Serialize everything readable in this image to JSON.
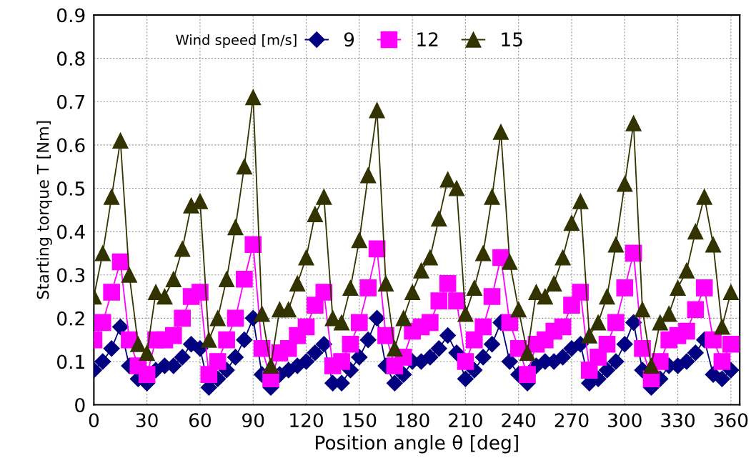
{
  "chart_data": {
    "type": "line",
    "xlabel": "Position angle θ [deg]",
    "ylabel": "Starting torque T [Nm]",
    "legend_title": "Wind speed [m/s]",
    "legend": "top left",
    "grid": true,
    "x": [
      0,
      5,
      10,
      15,
      20,
      25,
      30,
      35,
      40,
      45,
      50,
      55,
      60,
      65,
      70,
      75,
      80,
      85,
      90,
      95,
      100,
      105,
      110,
      115,
      120,
      125,
      130,
      135,
      140,
      145,
      150,
      155,
      160,
      165,
      170,
      175,
      180,
      185,
      190,
      195,
      200,
      205,
      210,
      215,
      220,
      225,
      230,
      235,
      240,
      245,
      250,
      255,
      260,
      265,
      270,
      275,
      280,
      285,
      290,
      295,
      300,
      305,
      310,
      315,
      320,
      325,
      330,
      335,
      340,
      345,
      350,
      355,
      360
    ],
    "xlim": [
      0,
      365
    ],
    "xticks": [
      0,
      30,
      60,
      90,
      120,
      150,
      180,
      210,
      240,
      270,
      300,
      330,
      360
    ],
    "ylim": [
      0,
      0.9
    ],
    "yticks": [
      0,
      0.1,
      0.2,
      0.3,
      0.4,
      0.5,
      0.6,
      0.7,
      0.8,
      0.9
    ],
    "series": [
      {
        "name": "9",
        "color": "#000080",
        "marker": "diamond",
        "values": [
          0.08,
          0.1,
          0.13,
          0.18,
          0.09,
          0.06,
          0.05,
          0.08,
          0.09,
          0.09,
          0.11,
          0.14,
          0.13,
          0.04,
          0.06,
          0.08,
          0.11,
          0.15,
          0.2,
          0.07,
          0.04,
          0.07,
          0.08,
          0.09,
          0.1,
          0.12,
          0.14,
          0.05,
          0.05,
          0.08,
          0.11,
          0.15,
          0.2,
          0.09,
          0.05,
          0.07,
          0.1,
          0.1,
          0.11,
          0.13,
          0.16,
          0.12,
          0.06,
          0.08,
          0.11,
          0.14,
          0.19,
          0.1,
          0.07,
          0.05,
          0.09,
          0.1,
          0.1,
          0.11,
          0.13,
          0.14,
          0.05,
          0.06,
          0.08,
          0.1,
          0.14,
          0.19,
          0.08,
          0.04,
          0.06,
          0.09,
          0.09,
          0.1,
          0.12,
          0.15,
          0.07,
          0.06,
          0.08
        ]
      },
      {
        "name": "12",
        "color": "#ff00ff",
        "marker": "square",
        "values": [
          0.15,
          0.19,
          0.26,
          0.33,
          0.15,
          0.09,
          0.07,
          0.15,
          0.15,
          0.16,
          0.2,
          0.25,
          0.26,
          0.07,
          0.1,
          0.15,
          0.2,
          0.29,
          0.37,
          0.13,
          0.06,
          0.12,
          0.13,
          0.16,
          0.18,
          0.23,
          0.26,
          0.09,
          0.1,
          0.14,
          0.19,
          0.27,
          0.36,
          0.16,
          0.09,
          0.11,
          0.17,
          0.18,
          0.19,
          0.24,
          0.28,
          0.24,
          0.1,
          0.15,
          0.18,
          0.25,
          0.34,
          0.19,
          0.13,
          0.07,
          0.14,
          0.15,
          0.17,
          0.18,
          0.23,
          0.26,
          0.08,
          0.11,
          0.14,
          0.19,
          0.27,
          0.35,
          0.13,
          0.06,
          0.1,
          0.15,
          0.16,
          0.17,
          0.22,
          0.27,
          0.15,
          0.1,
          0.14
        ]
      },
      {
        "name": "15",
        "color": "#333300",
        "marker": "triangle",
        "values": [
          0.25,
          0.35,
          0.48,
          0.61,
          0.3,
          0.14,
          0.12,
          0.26,
          0.25,
          0.29,
          0.36,
          0.46,
          0.47,
          0.15,
          0.2,
          0.29,
          0.41,
          0.55,
          0.71,
          0.21,
          0.09,
          0.22,
          0.22,
          0.28,
          0.34,
          0.44,
          0.48,
          0.2,
          0.19,
          0.27,
          0.38,
          0.53,
          0.68,
          0.28,
          0.13,
          0.2,
          0.26,
          0.31,
          0.34,
          0.43,
          0.52,
          0.5,
          0.21,
          0.27,
          0.35,
          0.48,
          0.63,
          0.33,
          0.22,
          0.12,
          0.26,
          0.25,
          0.28,
          0.34,
          0.42,
          0.47,
          0.16,
          0.19,
          0.25,
          0.37,
          0.51,
          0.65,
          0.22,
          0.09,
          0.19,
          0.21,
          0.27,
          0.31,
          0.4,
          0.48,
          0.37,
          0.18,
          0.26
        ]
      }
    ]
  }
}
